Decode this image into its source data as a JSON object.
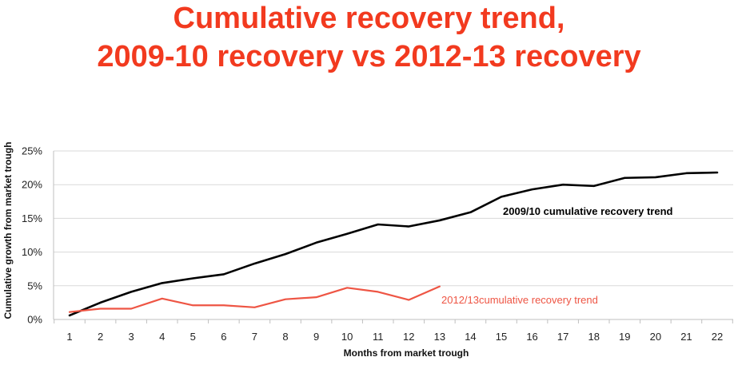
{
  "title": {
    "line1": "Cumulative recovery trend,",
    "line2": "2009-10 recovery vs 2012-13 recovery"
  },
  "chart_data": {
    "type": "line",
    "x": [
      1,
      2,
      3,
      4,
      5,
      6,
      7,
      8,
      9,
      10,
      11,
      12,
      13,
      14,
      15,
      16,
      17,
      18,
      19,
      20,
      21,
      22
    ],
    "xlabel": "Months from market trough",
    "ylabel": "Cumulative growth from market trough",
    "ylim": [
      0,
      25
    ],
    "yticks": [
      "0%",
      "5%",
      "10%",
      "15%",
      "20%",
      "25%"
    ],
    "grid": true,
    "series": [
      {
        "name": "2009/10 cumulative recovery trend",
        "color": "#000000",
        "x": [
          1,
          2,
          3,
          4,
          5,
          6,
          7,
          8,
          9,
          10,
          11,
          12,
          13,
          14,
          15,
          16,
          17,
          18,
          19,
          20,
          21,
          22
        ],
        "values": [
          0.6,
          2.5,
          4.1,
          5.4,
          6.1,
          6.7,
          8.3,
          9.7,
          11.4,
          12.7,
          14.1,
          13.8,
          14.7,
          15.9,
          18.2,
          19.3,
          20.0,
          19.8,
          21.0,
          21.1,
          21.7,
          21.8
        ]
      },
      {
        "name": "2012/13cumulative recovery trend",
        "color": "#ee5544",
        "x": [
          1,
          2,
          3,
          4,
          5,
          6,
          7,
          8,
          9,
          10,
          11,
          12,
          13
        ],
        "values": [
          1.1,
          1.6,
          1.6,
          3.1,
          2.1,
          2.1,
          1.8,
          3.0,
          3.3,
          4.7,
          4.1,
          2.9,
          4.9
        ]
      }
    ]
  }
}
